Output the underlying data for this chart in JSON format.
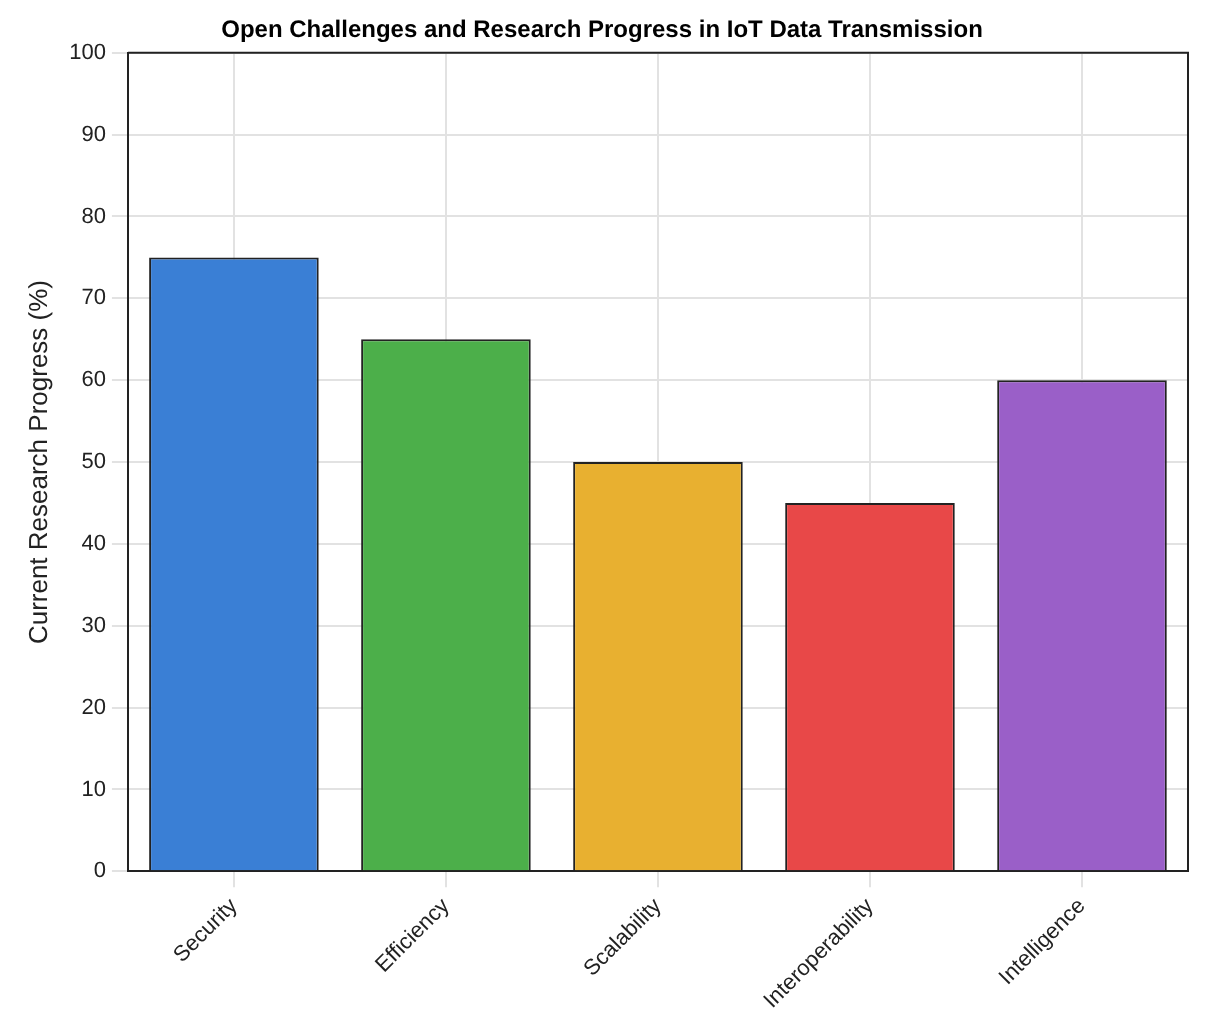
{
  "chart_data": {
    "type": "bar",
    "title": "Open Challenges and Research Progress in IoT Data Transmission",
    "ylabel": "Current Research Progress (%)",
    "categories": [
      "Security",
      "Efficiency",
      "Scalability",
      "Interoperability",
      "Intelligence"
    ],
    "values": [
      75,
      65,
      50,
      45,
      60
    ],
    "colors": [
      "#3a7fd5",
      "#4caf4a",
      "#e8b030",
      "#e84848",
      "#9a5fc8"
    ],
    "ylim": [
      0,
      100
    ],
    "yticks": [
      0,
      10,
      20,
      30,
      40,
      50,
      60,
      70,
      80,
      90,
      100
    ],
    "grid": true,
    "legend": false
  }
}
